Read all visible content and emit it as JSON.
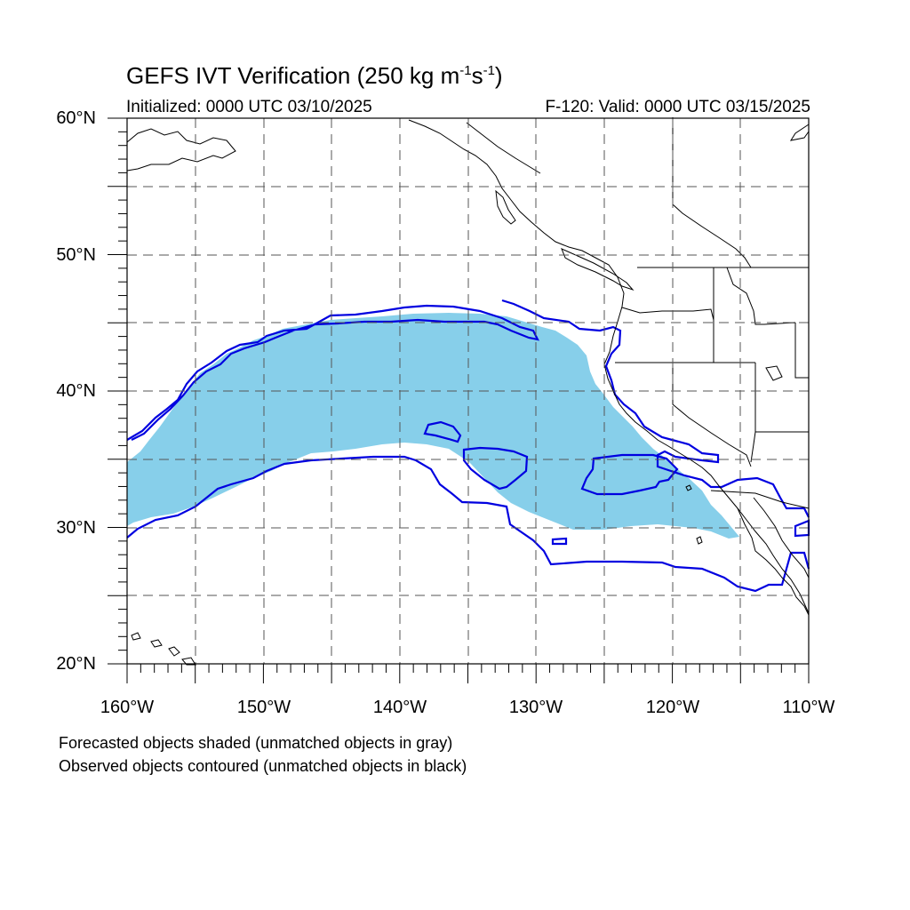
{
  "title": {
    "prefix": "GEFS IVT Verification (250 kg m",
    "exp1": "-1",
    "mid": "s",
    "exp2": "-1",
    "suffix": ")"
  },
  "initialized_text": "Initialized: 0000 UTC 03/10/2025",
  "valid_text": "F-120: Valid: 0000 UTC 03/15/2025",
  "lat_labels": [
    "60°N",
    "50°N",
    "40°N",
    "30°N",
    "20°N"
  ],
  "lon_labels": [
    "160°W",
    "150°W",
    "140°W",
    "130°W",
    "120°W",
    "110°W"
  ],
  "notes": {
    "forecast": "Forecasted objects shaded (unmatched objects in gray)",
    "observed": "Observed objects contoured (unmatched objects in black)"
  },
  "colors": {
    "forecast_fill": "#87cfea",
    "observed_contour": "#0000e0",
    "coastline": "#000000",
    "grid": "#555555"
  },
  "map_extent": {
    "lon_min": -160,
    "lon_max": -110,
    "lat_min": 20,
    "lat_max": 60
  },
  "grid": {
    "lon_step": 5,
    "lat_step": 5,
    "style": "dashed"
  }
}
